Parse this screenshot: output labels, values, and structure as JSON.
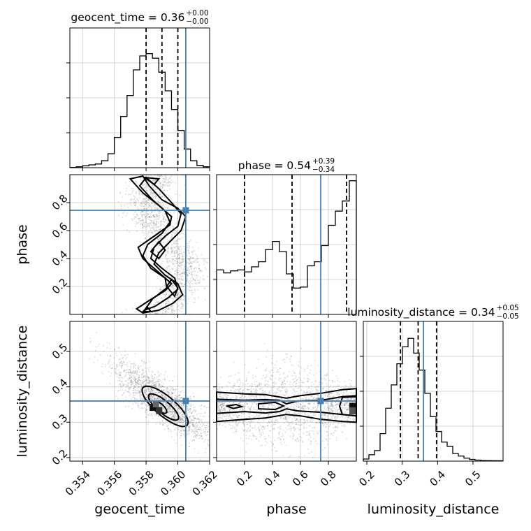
{
  "chart_data": {
    "type": "corner",
    "truth_color": "#4682b4",
    "parameters": [
      {
        "name": "geocent_time",
        "title": {
          "prefix": "geocent_time = 0.36",
          "plus": "+0.00",
          "minus": "−0.00"
        },
        "ticks": [
          "0.354",
          "0.356",
          "0.358",
          "0.360",
          "0.362"
        ],
        "tick_values": [
          0.354,
          0.356,
          0.358,
          0.36,
          0.362
        ],
        "range": [
          0.3532,
          0.362
        ],
        "truth": 0.3605,
        "quantiles": [
          0.358,
          0.359,
          0.36
        ],
        "hist": [
          0.1,
          0.4,
          0.8,
          1.2,
          1.6,
          3,
          6,
          13,
          22,
          31,
          42,
          48,
          49,
          47,
          41,
          33,
          25,
          16,
          8,
          3,
          1,
          0.4
        ],
        "hist_max": 60
      },
      {
        "name": "phase",
        "title": {
          "prefix": "phase = 0.54",
          "plus": "+0.39",
          "minus": "−0.34"
        },
        "ticks": [
          "0.2",
          "0.4",
          "0.6",
          "0.8"
        ],
        "tick_values": [
          0.2,
          0.4,
          0.6,
          0.8
        ],
        "range": [
          0.0,
          1.0
        ],
        "truth": 0.745,
        "quantiles": [
          0.2,
          0.54,
          0.93
        ],
        "hist": [
          2.2,
          2.05,
          2.15,
          2.2,
          2.1,
          2.35,
          2.6,
          3.2,
          3.6,
          3.1,
          2.0,
          1.3,
          1.35,
          2.4,
          2.6,
          3.4,
          4.4,
          5.1,
          5.6,
          6.6
        ],
        "hist_max": 6.9
      },
      {
        "name": "luminosity_distance",
        "title": {
          "prefix": "luminosity_distance = 0.34",
          "plus": "+0.05",
          "minus": "−0.05"
        },
        "ticks": [
          "0.2",
          "0.3",
          "0.4",
          "0.5"
        ],
        "tick_values": [
          0.2,
          0.3,
          0.4,
          0.5
        ],
        "range": [
          0.19,
          0.585
        ],
        "truth": 0.36,
        "quantiles": [
          0.295,
          0.345,
          0.397
        ],
        "hist": [
          0.5,
          1.5,
          2.5,
          6.5,
          12.5,
          18,
          23,
          27,
          29,
          25.5,
          21.5,
          16,
          10.5,
          7,
          4.5,
          3.5,
          1.8,
          1.2,
          0.7,
          0.4,
          0.25,
          0.15,
          0.12,
          0.1,
          0.1
        ],
        "hist_max": 33
      }
    ],
    "pairs": [
      {
        "x": "geocent_time",
        "y": "phase"
      },
      {
        "x": "geocent_time",
        "y": "luminosity_distance"
      },
      {
        "x": "phase",
        "y": "luminosity_distance"
      }
    ],
    "grid": true
  }
}
